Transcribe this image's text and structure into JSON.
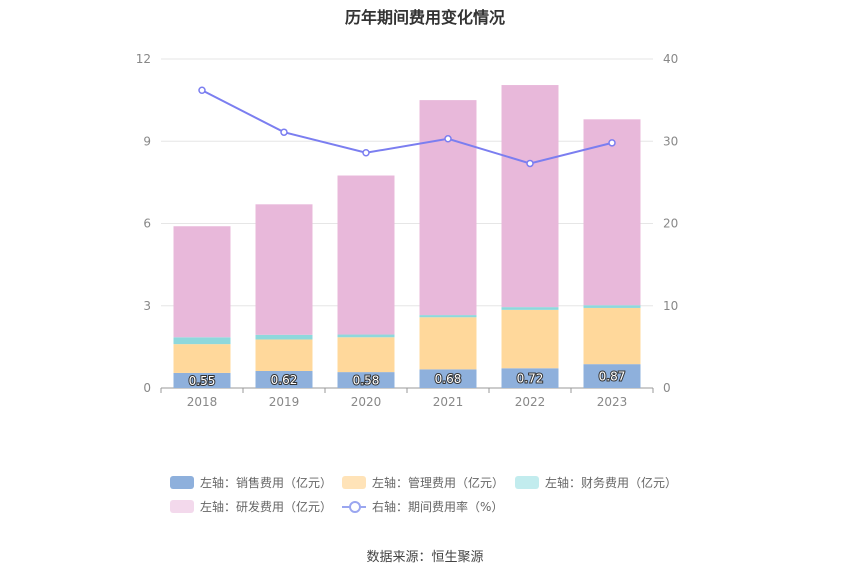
{
  "chart_data": {
    "type": "bar",
    "title": "历年期间费用变化情况",
    "categories": [
      "2018",
      "2019",
      "2020",
      "2021",
      "2022",
      "2023"
    ],
    "y_left": {
      "ticks": [
        "0",
        "3",
        "6",
        "9",
        "12"
      ],
      "ylim": [
        0,
        12
      ]
    },
    "y_right": {
      "ticks": [
        "0",
        "10",
        "20",
        "30",
        "40"
      ],
      "ylim": [
        0,
        40
      ]
    },
    "stacked": true,
    "series": [
      {
        "name": "左轴：销售费用（亿元）",
        "axis": "left",
        "color": "#8eb0dc",
        "values": [
          0.55,
          0.62,
          0.58,
          0.68,
          0.72,
          0.87
        ],
        "labels": [
          "0.55",
          "0.62",
          "0.58",
          "0.68",
          "0.72",
          "0.87"
        ]
      },
      {
        "name": "左轴：管理费用（亿元）",
        "axis": "left",
        "color": "#ffd89b",
        "values": [
          1.05,
          1.15,
          1.27,
          1.9,
          2.13,
          2.05
        ]
      },
      {
        "name": "左轴：财务费用（亿元）",
        "axis": "left",
        "color": "#8ed8dc",
        "values": [
          0.25,
          0.17,
          0.1,
          0.08,
          0.1,
          0.1
        ]
      },
      {
        "name": "左轴：研发费用（亿元）",
        "axis": "left",
        "color": "#e8b8da",
        "values": [
          4.05,
          4.76,
          5.8,
          7.84,
          8.1,
          6.78
        ]
      },
      {
        "name": "右轴：期间费用率（%）",
        "axis": "right",
        "type": "line",
        "color": "#7b7ef0",
        "values": [
          36.2,
          31.1,
          28.6,
          30.3,
          27.3,
          29.8
        ]
      }
    ],
    "grid": true,
    "legend_position": "bottom"
  },
  "legend": {
    "items": [
      {
        "label": "左轴：销售费用（亿元）",
        "color": "#8eb0dc",
        "kind": "swatch"
      },
      {
        "label": "左轴：管理费用（亿元）",
        "color": "#ffe3b8",
        "kind": "swatch"
      },
      {
        "label": "左轴：财务费用（亿元）",
        "color": "#c2ecee",
        "kind": "swatch"
      },
      {
        "label": "左轴：研发费用（亿元）",
        "color": "#f3d9ec",
        "kind": "swatch"
      },
      {
        "label": "右轴：期间费用率（%）",
        "color": "#9aa6f0",
        "kind": "line"
      }
    ]
  },
  "source": "数据来源：恒生聚源"
}
